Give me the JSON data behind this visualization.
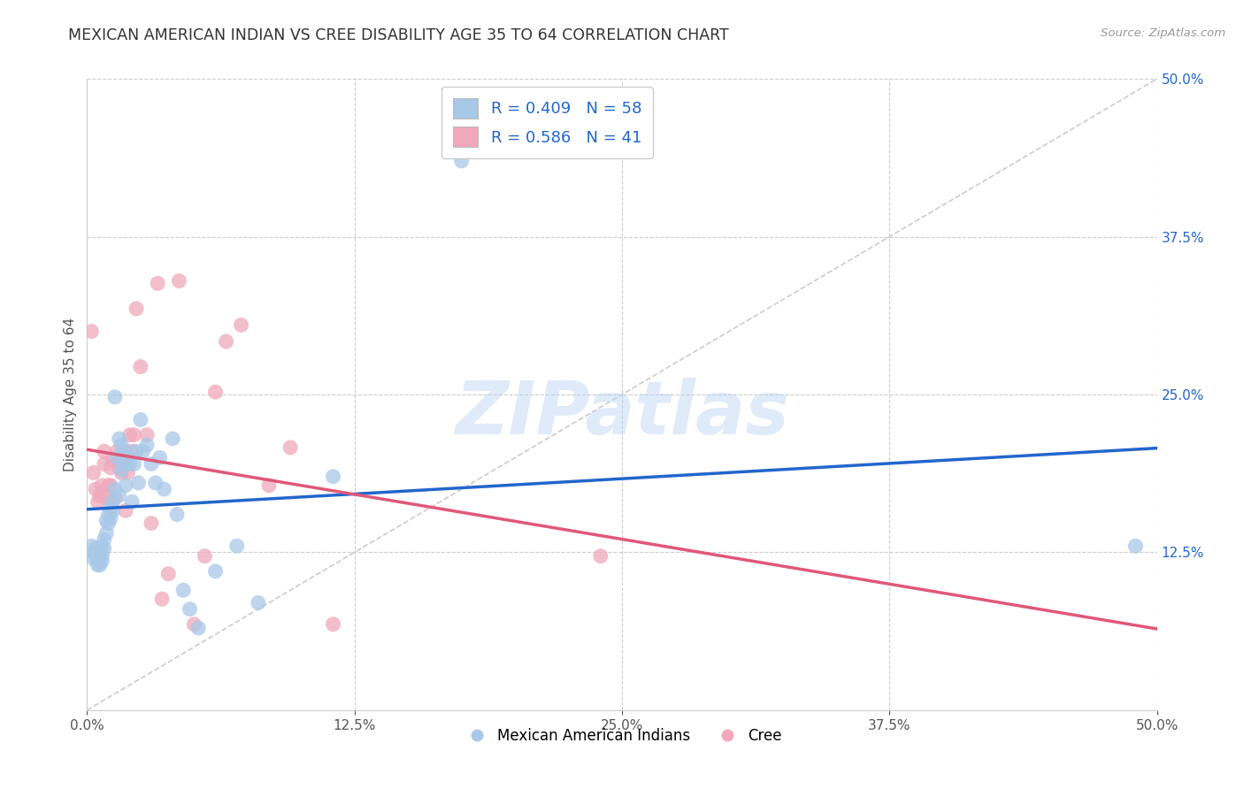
{
  "title": "MEXICAN AMERICAN INDIAN VS CREE DISABILITY AGE 35 TO 64 CORRELATION CHART",
  "source": "Source: ZipAtlas.com",
  "ylabel": "Disability Age 35 to 64",
  "xlim": [
    0.0,
    0.5
  ],
  "ylim": [
    0.0,
    0.5
  ],
  "xtick_values": [
    0.0,
    0.125,
    0.25,
    0.375,
    0.5
  ],
  "ytick_values": [
    0.125,
    0.25,
    0.375,
    0.5
  ],
  "blue_R": 0.409,
  "blue_N": 58,
  "pink_R": 0.586,
  "pink_N": 41,
  "blue_color": "#a8c8e8",
  "pink_color": "#f0a8bc",
  "blue_line_color": "#2266cc",
  "pink_line_color": "#e05878",
  "diagonal_color": "#cccccc",
  "legend_label_blue": "Mexican American Indians",
  "legend_label_pink": "Cree",
  "watermark": "ZIPatlas",
  "blue_scatter_x": [
    0.002,
    0.003,
    0.003,
    0.004,
    0.004,
    0.005,
    0.005,
    0.005,
    0.006,
    0.006,
    0.006,
    0.007,
    0.007,
    0.007,
    0.008,
    0.008,
    0.009,
    0.009,
    0.01,
    0.01,
    0.011,
    0.011,
    0.012,
    0.012,
    0.013,
    0.013,
    0.014,
    0.015,
    0.015,
    0.016,
    0.016,
    0.017,
    0.018,
    0.018,
    0.019,
    0.02,
    0.021,
    0.022,
    0.023,
    0.024,
    0.025,
    0.026,
    0.028,
    0.03,
    0.032,
    0.034,
    0.036,
    0.04,
    0.042,
    0.045,
    0.048,
    0.052,
    0.06,
    0.07,
    0.08,
    0.115,
    0.175,
    0.49
  ],
  "blue_scatter_y": [
    0.13,
    0.125,
    0.12,
    0.128,
    0.122,
    0.118,
    0.115,
    0.125,
    0.12,
    0.115,
    0.125,
    0.13,
    0.122,
    0.118,
    0.135,
    0.128,
    0.15,
    0.14,
    0.155,
    0.148,
    0.16,
    0.152,
    0.165,
    0.158,
    0.248,
    0.175,
    0.2,
    0.215,
    0.17,
    0.19,
    0.21,
    0.195,
    0.205,
    0.178,
    0.2,
    0.195,
    0.165,
    0.195,
    0.205,
    0.18,
    0.23,
    0.205,
    0.21,
    0.195,
    0.18,
    0.2,
    0.175,
    0.215,
    0.155,
    0.095,
    0.08,
    0.065,
    0.11,
    0.13,
    0.085,
    0.185,
    0.435,
    0.13
  ],
  "pink_scatter_x": [
    0.002,
    0.003,
    0.004,
    0.005,
    0.006,
    0.007,
    0.008,
    0.008,
    0.009,
    0.01,
    0.011,
    0.011,
    0.012,
    0.013,
    0.014,
    0.015,
    0.015,
    0.016,
    0.017,
    0.018,
    0.019,
    0.02,
    0.021,
    0.022,
    0.023,
    0.025,
    0.028,
    0.03,
    0.033,
    0.035,
    0.038,
    0.043,
    0.05,
    0.055,
    0.06,
    0.065,
    0.072,
    0.085,
    0.095,
    0.115,
    0.24
  ],
  "pink_scatter_y": [
    0.3,
    0.188,
    0.175,
    0.165,
    0.17,
    0.178,
    0.195,
    0.205,
    0.168,
    0.178,
    0.178,
    0.192,
    0.198,
    0.168,
    0.205,
    0.198,
    0.192,
    0.188,
    0.198,
    0.158,
    0.188,
    0.218,
    0.205,
    0.218,
    0.318,
    0.272,
    0.218,
    0.148,
    0.338,
    0.088,
    0.108,
    0.34,
    0.068,
    0.122,
    0.252,
    0.292,
    0.305,
    0.178,
    0.208,
    0.068,
    0.122
  ],
  "blue_trendline": [
    0.115,
    0.36
  ],
  "pink_trendline": [
    0.135,
    0.5
  ]
}
